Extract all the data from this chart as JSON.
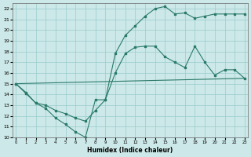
{
  "line1_x": [
    0,
    1,
    2,
    3,
    4,
    5,
    6,
    7,
    8,
    9,
    10,
    11,
    12,
    13,
    14,
    15,
    16,
    17,
    18,
    19,
    20,
    21,
    22,
    23
  ],
  "line1_y": [
    15.0,
    14.1,
    13.2,
    12.7,
    11.8,
    11.2,
    10.5,
    10.0,
    13.5,
    13.5,
    17.8,
    19.5,
    20.4,
    21.3,
    22.0,
    22.2,
    21.5,
    21.6,
    21.1,
    21.3,
    21.5,
    21.5,
    21.5,
    21.5
  ],
  "line2_x": [
    0,
    1,
    2,
    3,
    4,
    5,
    6,
    7,
    8,
    9,
    10,
    11,
    12,
    13,
    14,
    15,
    16,
    17,
    18,
    19,
    20,
    21,
    22,
    23
  ],
  "line2_y": [
    15.0,
    14.2,
    13.2,
    13.0,
    12.5,
    12.2,
    11.8,
    11.5,
    12.5,
    13.5,
    16.0,
    17.8,
    18.4,
    18.5,
    18.5,
    17.5,
    17.0,
    16.5,
    18.5,
    17.0,
    15.8,
    16.3,
    16.3,
    15.5
  ],
  "line3_x": [
    0,
    23
  ],
  "line3_y": [
    15.0,
    15.5
  ],
  "color": "#2a7a6a",
  "bg_color": "#cce8e8",
  "grid_color": "#99cccc",
  "xlabel": "Humidex (Indice chaleur)",
  "ylim": [
    10,
    22.5
  ],
  "xlim": [
    -0.3,
    23.3
  ],
  "yticks": [
    10,
    11,
    12,
    13,
    14,
    15,
    16,
    17,
    18,
    19,
    20,
    21,
    22
  ],
  "xticks": [
    0,
    1,
    2,
    3,
    4,
    5,
    6,
    7,
    8,
    9,
    10,
    11,
    12,
    13,
    14,
    15,
    16,
    17,
    18,
    19,
    20,
    21,
    22,
    23
  ]
}
